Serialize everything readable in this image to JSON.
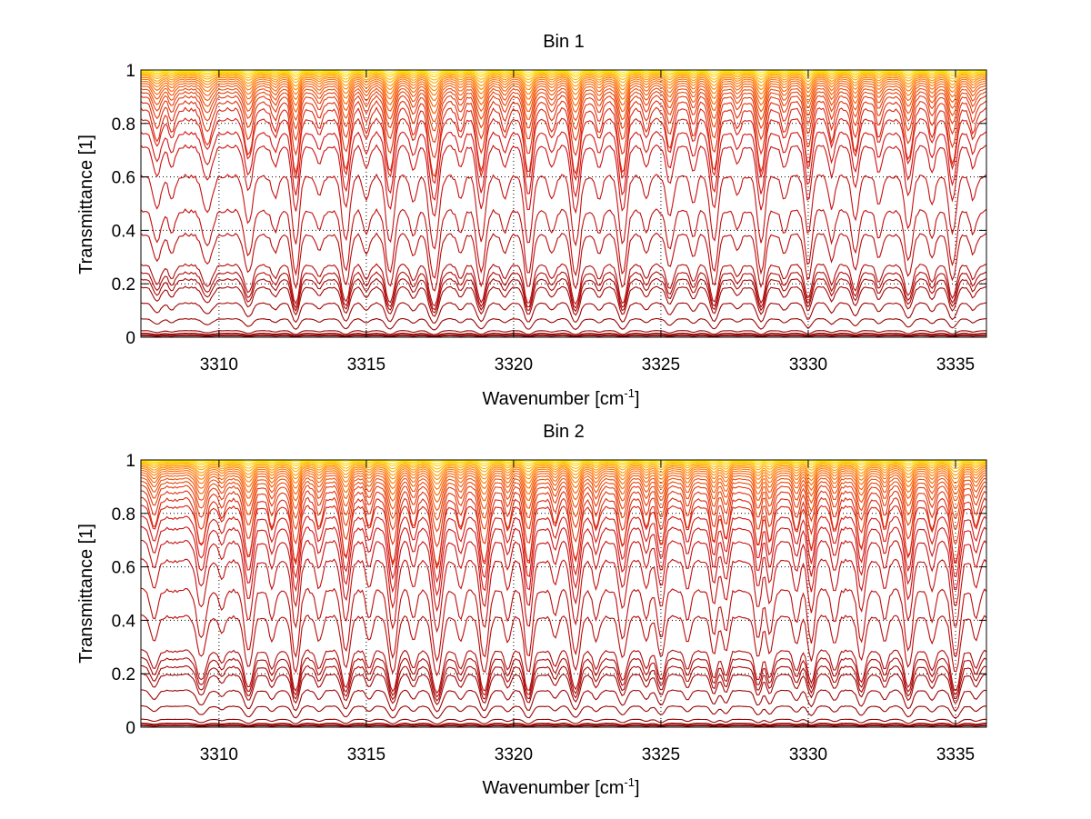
{
  "chart_data": [
    {
      "type": "line",
      "title": "Bin 1",
      "xlabel": "Wavenumber [cm",
      "xlabel_superscript": "-1",
      "xlabel_suffix": "]",
      "ylabel": "Transmittance [1]",
      "xlim": [
        3307.35,
        3336.05
      ],
      "ylim": [
        0,
        1.0
      ],
      "xticks": [
        3310,
        3315,
        3320,
        3325,
        3330,
        3335
      ],
      "xtick_labels": [
        "3310",
        "3315",
        "3320",
        "3325",
        "3330",
        "3335"
      ],
      "yticks": [
        0,
        0.2,
        0.4,
        0.6,
        0.8,
        1
      ],
      "ytick_labels": [
        "0",
        "0.2",
        "0.4",
        "0.6",
        "0.8",
        "1"
      ],
      "grid": true,
      "colormap": "autumn (dark red to yellow)",
      "series_baselines": [
        0.005,
        0.01,
        0.015,
        0.025,
        0.07,
        0.13,
        0.19,
        0.22,
        0.245,
        0.275,
        0.39,
        0.48,
        0.61,
        0.72,
        0.77,
        0.82,
        0.86,
        0.885,
        0.905,
        0.92,
        0.932,
        0.943,
        0.952,
        0.96,
        0.967,
        0.973,
        0.978,
        0.983,
        0.987,
        0.991,
        0.994,
        0.997
      ],
      "absorption_lines": [
        {
          "x": 3307.9,
          "depth": 0.35,
          "width": 0.18
        },
        {
          "x": 3308.4,
          "depth": 0.25,
          "width": 0.14
        },
        {
          "x": 3309.6,
          "depth": 0.4,
          "width": 0.22
        },
        {
          "x": 3311.0,
          "depth": 0.55,
          "width": 0.18
        },
        {
          "x": 3311.9,
          "depth": 0.22,
          "width": 0.15
        },
        {
          "x": 3312.6,
          "depth": 0.85,
          "width": 0.16
        },
        {
          "x": 3313.4,
          "depth": 0.2,
          "width": 0.15
        },
        {
          "x": 3314.3,
          "depth": 0.8,
          "width": 0.17
        },
        {
          "x": 3315.0,
          "depth": 0.25,
          "width": 0.14
        },
        {
          "x": 3315.8,
          "depth": 0.82,
          "width": 0.18
        },
        {
          "x": 3316.6,
          "depth": 0.3,
          "width": 0.14
        },
        {
          "x": 3317.3,
          "depth": 0.95,
          "width": 0.2
        },
        {
          "x": 3318.2,
          "depth": 0.25,
          "width": 0.14
        },
        {
          "x": 3318.9,
          "depth": 0.8,
          "width": 0.18
        },
        {
          "x": 3319.7,
          "depth": 0.25,
          "width": 0.14
        },
        {
          "x": 3320.5,
          "depth": 0.85,
          "width": 0.17
        },
        {
          "x": 3321.3,
          "depth": 0.25,
          "width": 0.14
        },
        {
          "x": 3322.1,
          "depth": 0.88,
          "width": 0.18
        },
        {
          "x": 3322.9,
          "depth": 0.25,
          "width": 0.14
        },
        {
          "x": 3323.7,
          "depth": 0.85,
          "width": 0.17
        },
        {
          "x": 3324.5,
          "depth": 0.25,
          "width": 0.14
        },
        {
          "x": 3325.3,
          "depth": 0.45,
          "width": 0.16
        },
        {
          "x": 3326.1,
          "depth": 0.3,
          "width": 0.14
        },
        {
          "x": 3326.8,
          "depth": 0.8,
          "width": 0.17
        },
        {
          "x": 3327.6,
          "depth": 0.2,
          "width": 0.14
        },
        {
          "x": 3328.4,
          "depth": 0.82,
          "width": 0.17
        },
        {
          "x": 3329.2,
          "depth": 0.25,
          "width": 0.14
        },
        {
          "x": 3330.0,
          "depth": 0.7,
          "width": 0.15
        },
        {
          "x": 3330.8,
          "depth": 0.35,
          "width": 0.14
        },
        {
          "x": 3331.6,
          "depth": 0.5,
          "width": 0.15
        },
        {
          "x": 3332.4,
          "depth": 0.3,
          "width": 0.14
        },
        {
          "x": 3333.4,
          "depth": 0.62,
          "width": 0.17
        },
        {
          "x": 3334.2,
          "depth": 0.3,
          "width": 0.14
        },
        {
          "x": 3334.9,
          "depth": 0.7,
          "width": 0.16
        },
        {
          "x": 3335.6,
          "depth": 0.25,
          "width": 0.14
        }
      ]
    },
    {
      "type": "line",
      "title": "Bin 2",
      "xlabel": "Wavenumber [cm",
      "xlabel_superscript": "-1",
      "xlabel_suffix": "]",
      "ylabel": "Transmittance [1]",
      "xlim": [
        3307.35,
        3336.05
      ],
      "ylim": [
        0,
        1.0
      ],
      "xticks": [
        3310,
        3315,
        3320,
        3325,
        3330,
        3335
      ],
      "xtick_labels": [
        "3310",
        "3315",
        "3320",
        "3325",
        "3330",
        "3335"
      ],
      "yticks": [
        0,
        0.2,
        0.4,
        0.6,
        0.8,
        1
      ],
      "ytick_labels": [
        "0",
        "0.2",
        "0.4",
        "0.6",
        "0.8",
        "1"
      ],
      "grid": true,
      "colormap": "autumn (dark red to yellow)",
      "series_baselines": [
        0.005,
        0.01,
        0.015,
        0.03,
        0.08,
        0.14,
        0.2,
        0.23,
        0.26,
        0.29,
        0.42,
        0.52,
        0.63,
        0.7,
        0.75,
        0.79,
        0.83,
        0.86,
        0.885,
        0.905,
        0.92,
        0.933,
        0.944,
        0.953,
        0.961,
        0.968,
        0.974,
        0.979,
        0.984,
        0.988,
        0.992,
        0.995,
        0.998
      ],
      "absorption_lines": [
        {
          "x": 3307.8,
          "depth": 0.3,
          "width": 0.16
        },
        {
          "x": 3309.4,
          "depth": 0.55,
          "width": 0.2
        },
        {
          "x": 3310.1,
          "depth": 0.2,
          "width": 0.14
        },
        {
          "x": 3311.0,
          "depth": 0.75,
          "width": 0.18
        },
        {
          "x": 3311.8,
          "depth": 0.3,
          "width": 0.14
        },
        {
          "x": 3312.6,
          "depth": 0.85,
          "width": 0.16
        },
        {
          "x": 3313.4,
          "depth": 0.3,
          "width": 0.14
        },
        {
          "x": 3314.3,
          "depth": 0.75,
          "width": 0.17
        },
        {
          "x": 3315.1,
          "depth": 0.3,
          "width": 0.14
        },
        {
          "x": 3315.9,
          "depth": 0.85,
          "width": 0.18
        },
        {
          "x": 3316.6,
          "depth": 0.3,
          "width": 0.14
        },
        {
          "x": 3317.4,
          "depth": 0.9,
          "width": 0.2
        },
        {
          "x": 3318.2,
          "depth": 0.3,
          "width": 0.14
        },
        {
          "x": 3319.0,
          "depth": 0.85,
          "width": 0.18
        },
        {
          "x": 3319.8,
          "depth": 0.3,
          "width": 0.14
        },
        {
          "x": 3320.5,
          "depth": 0.85,
          "width": 0.17
        },
        {
          "x": 3321.4,
          "depth": 0.25,
          "width": 0.14
        },
        {
          "x": 3322.1,
          "depth": 0.8,
          "width": 0.18
        },
        {
          "x": 3322.8,
          "depth": 0.3,
          "width": 0.14
        },
        {
          "x": 3323.7,
          "depth": 0.55,
          "width": 0.17
        },
        {
          "x": 3324.5,
          "depth": 0.3,
          "width": 0.14
        },
        {
          "x": 3325.0,
          "depth": 0.55,
          "width": 0.16
        },
        {
          "x": 3325.9,
          "depth": 0.3,
          "width": 0.14
        },
        {
          "x": 3326.8,
          "depth": 0.5,
          "width": 0.15
        },
        {
          "x": 3327.2,
          "depth": 0.45,
          "width": 0.14
        },
        {
          "x": 3328.3,
          "depth": 0.55,
          "width": 0.15
        },
        {
          "x": 3328.7,
          "depth": 0.5,
          "width": 0.14
        },
        {
          "x": 3329.6,
          "depth": 0.35,
          "width": 0.14
        },
        {
          "x": 3330.1,
          "depth": 0.6,
          "width": 0.15
        },
        {
          "x": 3330.9,
          "depth": 0.35,
          "width": 0.14
        },
        {
          "x": 3331.8,
          "depth": 0.6,
          "width": 0.16
        },
        {
          "x": 3332.6,
          "depth": 0.3,
          "width": 0.14
        },
        {
          "x": 3333.4,
          "depth": 0.75,
          "width": 0.17
        },
        {
          "x": 3334.2,
          "depth": 0.35,
          "width": 0.14
        },
        {
          "x": 3335.0,
          "depth": 0.85,
          "width": 0.18
        },
        {
          "x": 3335.7,
          "depth": 0.3,
          "width": 0.14
        }
      ]
    }
  ],
  "colors": {
    "dark_red": "#8b0000",
    "red": "#e00000",
    "orange": "#ff8000",
    "yellow": "#ffff00",
    "grid": "#000000",
    "axis": "#000000"
  }
}
